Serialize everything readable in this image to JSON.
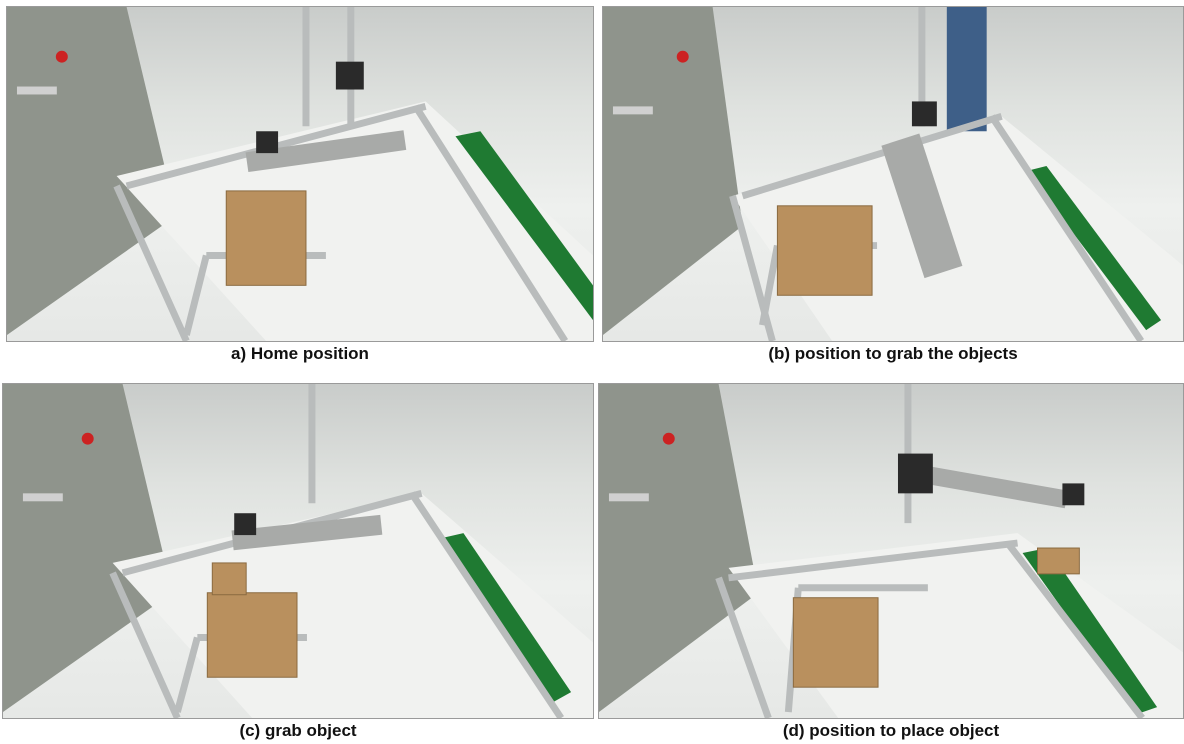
{
  "figure": {
    "panels": [
      {
        "id": "a",
        "caption": "a) Home position"
      },
      {
        "id": "b",
        "caption": "(b) position to grab the objects"
      },
      {
        "id": "c",
        "caption": "(c) grab object"
      },
      {
        "id": "d",
        "caption": "(d) position to place object"
      }
    ]
  },
  "colors": {
    "aluminum": "#b9bcbc",
    "conveyor_belt": "#1f7a32",
    "cardboard": "#b9905e",
    "floor": "#eceeec",
    "wall_panel": "#8f948c",
    "robot_arm": "#a8aaa8",
    "stepper_motor": "#2a2a2a"
  }
}
